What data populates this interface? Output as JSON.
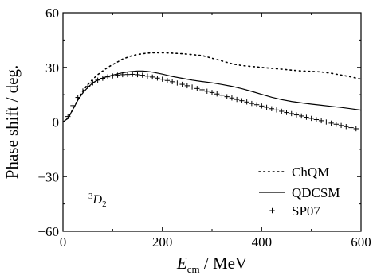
{
  "chart_data": {
    "type": "line",
    "xlabel_main": "E",
    "xlabel_sub": "cm",
    "xlabel_rest": " / MeV",
    "ylabel": "Phase shift / deg.",
    "xlim": [
      0,
      600
    ],
    "ylim": [
      -60,
      60
    ],
    "x_ticks": [
      0,
      200,
      400,
      600
    ],
    "y_ticks": [
      -60,
      -30,
      0,
      30,
      60
    ],
    "x_tick_labels": [
      "0",
      "200",
      "400",
      "600"
    ],
    "y_tick_labels": [
      "−60",
      "−30",
      "0",
      "30",
      "60"
    ],
    "grid": false,
    "legend_position": "bottom-right",
    "annotation": {
      "pre": "3",
      "main": "D",
      "sub": "2"
    },
    "series": [
      {
        "name": "ChQM",
        "style": "dotted",
        "x": [
          0,
          10,
          20,
          30,
          40,
          50,
          60,
          70,
          80,
          90,
          100,
          110,
          120,
          130,
          140,
          150,
          160,
          170,
          180,
          200,
          220,
          240,
          260,
          280,
          300,
          320,
          340,
          360,
          380,
          400,
          420,
          440,
          460,
          480,
          500,
          520,
          540,
          560,
          580,
          600
        ],
        "y": [
          0,
          2,
          7,
          12.5,
          17,
          20.5,
          23.5,
          26,
          28,
          30,
          31.5,
          33,
          34.5,
          35.5,
          36.5,
          37,
          37.5,
          37.8,
          38,
          38,
          37.8,
          37.5,
          37,
          36.5,
          35,
          33.5,
          32,
          31,
          30.5,
          30,
          29.5,
          29,
          28.5,
          28,
          27.8,
          27.5,
          26.8,
          25.8,
          24.8,
          23.5
        ]
      },
      {
        "name": "QDCSM",
        "style": "solid",
        "x": [
          0,
          10,
          20,
          30,
          40,
          50,
          60,
          70,
          80,
          90,
          100,
          110,
          120,
          130,
          140,
          150,
          160,
          170,
          180,
          200,
          220,
          240,
          260,
          280,
          300,
          320,
          340,
          360,
          380,
          400,
          420,
          440,
          460,
          480,
          500,
          520,
          540,
          560,
          580,
          600
        ],
        "y": [
          0,
          2,
          7,
          12,
          16,
          19,
          21.5,
          23,
          24.2,
          25,
          25.8,
          26.4,
          27,
          27.5,
          27.8,
          28,
          28,
          27.8,
          27.4,
          26.3,
          25,
          24,
          23,
          22.2,
          21.5,
          20.6,
          19.6,
          18.3,
          16.8,
          15.2,
          13.6,
          12.3,
          11.3,
          10.5,
          9.8,
          9.2,
          8.6,
          8,
          7.3,
          6.5
        ]
      },
      {
        "name": "SP07",
        "style": "plus",
        "x": [
          10,
          20,
          30,
          40,
          50,
          60,
          70,
          80,
          90,
          100,
          110,
          120,
          130,
          140,
          150,
          160,
          170,
          180,
          190,
          200,
          210,
          220,
          230,
          240,
          250,
          260,
          270,
          280,
          290,
          300,
          310,
          320,
          330,
          340,
          350,
          360,
          370,
          380,
          390,
          400,
          410,
          420,
          430,
          440,
          450,
          460,
          470,
          480,
          490,
          500,
          510,
          520,
          530,
          540,
          550,
          560,
          570,
          580,
          590
        ],
        "y": [
          3,
          9,
          13.5,
          17,
          19.5,
          21.5,
          23,
          24,
          24.8,
          25.3,
          25.7,
          26,
          26.1,
          26.2,
          26,
          25.7,
          25.2,
          24.7,
          24.1,
          23.5,
          22.8,
          22.1,
          21.4,
          20.7,
          19.9,
          19.2,
          18.4,
          17.7,
          16.9,
          16.2,
          15.4,
          14.7,
          13.9,
          13.2,
          12.4,
          11.7,
          11,
          10.2,
          9.5,
          8.8,
          8.1,
          7.3,
          6.6,
          5.9,
          5.2,
          4.6,
          3.9,
          3.3,
          2.6,
          2,
          1.3,
          0.7,
          0,
          -0.6,
          -1.2,
          -1.9,
          -2.5,
          -3.1,
          -3.7
        ]
      }
    ]
  }
}
